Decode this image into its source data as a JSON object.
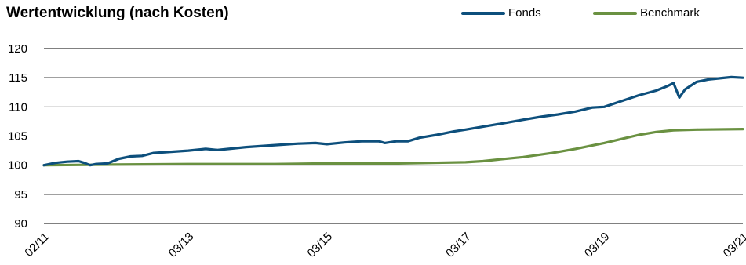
{
  "chart_data": {
    "type": "line",
    "title": "Wertentwicklung (nach Kosten)",
    "xlabel": "",
    "ylabel": "",
    "ylim": [
      90,
      120
    ],
    "yticks": [
      90,
      95,
      100,
      105,
      110,
      115,
      120
    ],
    "xtick_labels": [
      "02/11",
      "03/13",
      "03/15",
      "03/17",
      "03/19",
      "03/21"
    ],
    "xtick_dates": [
      "2011-02",
      "2013-03",
      "2015-03",
      "2017-03",
      "2019-03",
      "2021-03"
    ],
    "grid": "horizontal",
    "legend_position": "top-right",
    "series": [
      {
        "name": "Fonds",
        "color": "#0d4f7c",
        "points": [
          [
            "2011-02",
            100.0
          ],
          [
            "2011-04",
            100.4
          ],
          [
            "2011-06",
            100.6
          ],
          [
            "2011-08",
            100.7
          ],
          [
            "2011-09",
            100.4
          ],
          [
            "2011-10",
            100.0
          ],
          [
            "2011-11",
            100.2
          ],
          [
            "2012-01",
            100.3
          ],
          [
            "2012-03",
            101.1
          ],
          [
            "2012-05",
            101.5
          ],
          [
            "2012-07",
            101.6
          ],
          [
            "2012-09",
            102.1
          ],
          [
            "2012-12",
            102.3
          ],
          [
            "2013-03",
            102.5
          ],
          [
            "2013-06",
            102.8
          ],
          [
            "2013-08",
            102.6
          ],
          [
            "2013-10",
            102.8
          ],
          [
            "2014-01",
            103.1
          ],
          [
            "2014-04",
            103.3
          ],
          [
            "2014-07",
            103.5
          ],
          [
            "2014-10",
            103.7
          ],
          [
            "2015-01",
            103.8
          ],
          [
            "2015-03",
            103.6
          ],
          [
            "2015-06",
            103.9
          ],
          [
            "2015-09",
            104.1
          ],
          [
            "2015-12",
            104.1
          ],
          [
            "2016-01",
            103.8
          ],
          [
            "2016-03",
            104.1
          ],
          [
            "2016-05",
            104.1
          ],
          [
            "2016-07",
            104.7
          ],
          [
            "2016-10",
            105.2
          ],
          [
            "2017-01",
            105.8
          ],
          [
            "2017-03",
            106.1
          ],
          [
            "2017-06",
            106.6
          ],
          [
            "2017-09",
            107.1
          ],
          [
            "2018-01",
            107.8
          ],
          [
            "2018-04",
            108.3
          ],
          [
            "2018-07",
            108.7
          ],
          [
            "2018-10",
            109.2
          ],
          [
            "2019-01",
            109.9
          ],
          [
            "2019-03",
            110.0
          ],
          [
            "2019-06",
            111.0
          ],
          [
            "2019-09",
            112.0
          ],
          [
            "2019-12",
            112.8
          ],
          [
            "2020-02",
            113.6
          ],
          [
            "2020-03",
            114.1
          ],
          [
            "2020-04",
            111.6
          ],
          [
            "2020-05",
            113.0
          ],
          [
            "2020-07",
            114.3
          ],
          [
            "2020-09",
            114.7
          ],
          [
            "2020-11",
            114.9
          ],
          [
            "2021-01",
            115.1
          ],
          [
            "2021-03",
            115.0
          ]
        ]
      },
      {
        "name": "Benchmark",
        "color": "#6a9141",
        "points": [
          [
            "2011-02",
            100.0
          ],
          [
            "2012-02",
            100.1
          ],
          [
            "2013-03",
            100.2
          ],
          [
            "2014-06",
            100.2
          ],
          [
            "2015-03",
            100.3
          ],
          [
            "2016-03",
            100.3
          ],
          [
            "2016-09",
            100.4
          ],
          [
            "2017-03",
            100.5
          ],
          [
            "2017-06",
            100.7
          ],
          [
            "2017-09",
            101.0
          ],
          [
            "2018-01",
            101.4
          ],
          [
            "2018-06",
            102.1
          ],
          [
            "2018-10",
            102.8
          ],
          [
            "2019-03",
            103.8
          ],
          [
            "2019-06",
            104.5
          ],
          [
            "2019-09",
            105.2
          ],
          [
            "2019-12",
            105.7
          ],
          [
            "2020-03",
            106.0
          ],
          [
            "2020-07",
            106.1
          ],
          [
            "2021-03",
            106.2
          ]
        ]
      }
    ]
  }
}
